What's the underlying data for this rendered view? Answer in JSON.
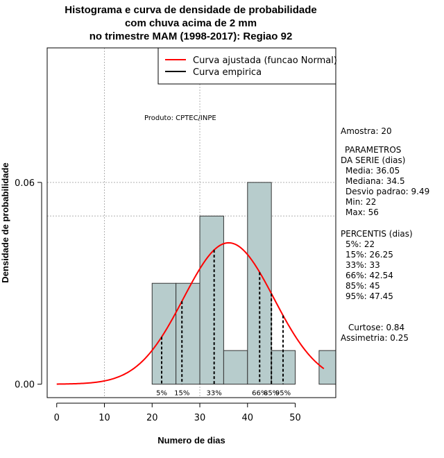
{
  "chart_data": {
    "type": "histogram",
    "title": [
      "Histograma e curva de densidade de probabilidade",
      "com chuva acima de 2 mm",
      "no trimestre MAM (1998-2017): Regiao 92"
    ],
    "xlabel": "Numero de dias",
    "ylabel": "Densidade de probabilidade",
    "xlim": [
      -2,
      58.5
    ],
    "ylim": [
      -0.004,
      0.1
    ],
    "x_ticks": [
      0,
      10,
      20,
      30,
      40,
      50
    ],
    "x_tick_labels": [
      "0",
      "10",
      "20",
      "30",
      "40",
      "50"
    ],
    "y_ticks": [
      0.0,
      0.06
    ],
    "y_tick_labels": [
      "0.00",
      "0.06"
    ],
    "grid_y": [
      0.06
    ],
    "grid_y_extra": [
      0.05,
      0.1
    ],
    "grid_x": [
      10,
      30
    ],
    "bins": [
      {
        "from": 20,
        "to": 25,
        "density": 0.03
      },
      {
        "from": 25,
        "to": 30,
        "density": 0.03
      },
      {
        "from": 30,
        "to": 35,
        "density": 0.05
      },
      {
        "from": 35,
        "to": 40,
        "density": 0.01
      },
      {
        "from": 40,
        "to": 45,
        "density": 0.06
      },
      {
        "from": 45,
        "to": 50,
        "density": 0.01
      },
      {
        "from": 50,
        "to": 55,
        "density": 0.0
      },
      {
        "from": 55,
        "to": 60,
        "density": 0.01
      }
    ],
    "normal_curve": {
      "mean": 36.05,
      "sd": 9.49,
      "from": 0,
      "to": 56,
      "color": "#ff0000"
    },
    "percentile_lines": [
      {
        "label": "5%",
        "value": 22
      },
      {
        "label": "15%",
        "value": 26.25
      },
      {
        "label": "33%",
        "value": 33
      },
      {
        "label": "66%",
        "value": 42.54
      },
      {
        "label": "85%",
        "value": 45
      },
      {
        "label": "95%",
        "value": 47.45
      }
    ],
    "legend": {
      "position": "top-right",
      "entries": [
        {
          "label": "Curva ajustada (funcao Normal)",
          "color": "#ff0000"
        },
        {
          "label": "Curva empirica",
          "color": "#000000"
        }
      ]
    },
    "annotation": "Produto: CPTEC/INPE",
    "bar_fill": "#b7cccc",
    "bar_edge": "#333333"
  },
  "stats": {
    "amostra": "Amostra: 20",
    "param_header_1": "PARAMETROS",
    "param_header_2": "DA SERIE (dias)",
    "media": "Media: 36.05",
    "mediana": "Mediana: 34.5",
    "desvio": "Desvio padrao: 9.49",
    "min": "Min: 22",
    "max": "Max: 56",
    "perc_header": "PERCENTIS (dias)",
    "p5": "5%: 22",
    "p15": "15%: 26.25",
    "p33": "33%: 33",
    "p66": "66%: 42.54",
    "p85": "85%: 45",
    "p95": "95%: 47.45",
    "curtose": "Curtose: 0.84",
    "assimetria": "Assimetria: 0.25"
  }
}
